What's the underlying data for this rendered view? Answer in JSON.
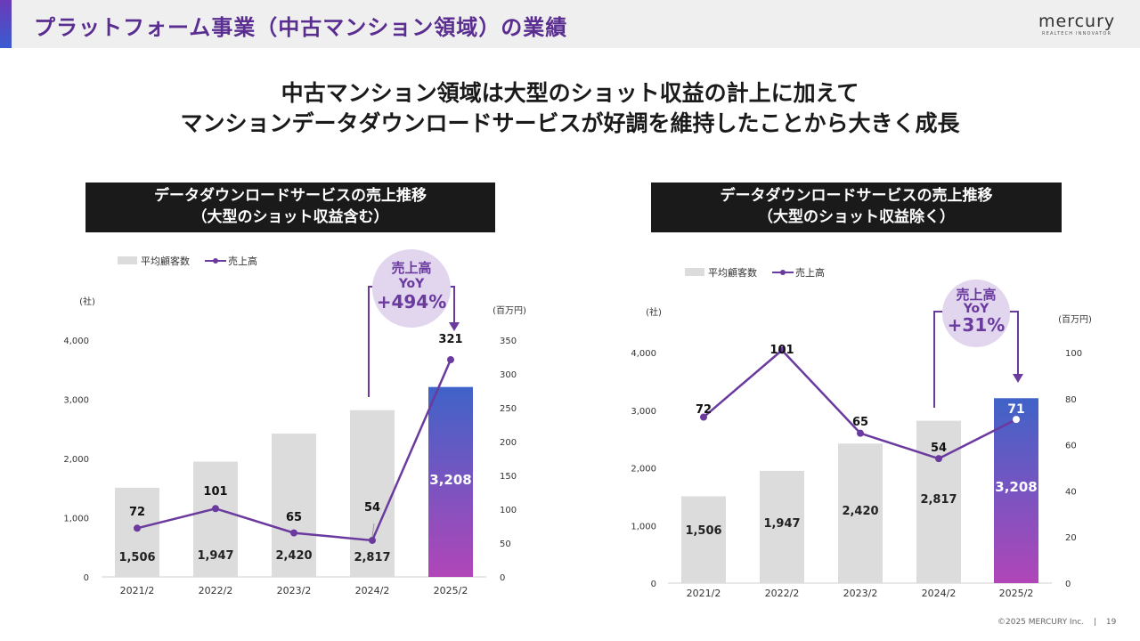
{
  "header": {
    "title": "プラットフォーム事業（中古マンション領域）の業績",
    "logo_text": "mercury",
    "logo_tagline": "REALTECH INNOVATOR"
  },
  "headline": {
    "line1": "中古マンション領域は大型のショット収益の計上に加えて",
    "line2": "マンションデータダウンロードサービスが好調を維持したことから大きく成長"
  },
  "footer": {
    "copyright": "©2025 MERCURY Inc.",
    "separator": "|",
    "page_number": "19"
  },
  "colors": {
    "accent_purple": "#6a3a9e",
    "bar_gray": "#dcdcdc",
    "highlight_bar_top": "#3f63c8",
    "highlight_bar_bottom": "#b146b8",
    "yoy_bubble": "#e1d6ee"
  },
  "chart_data": [
    {
      "type": "bar",
      "panel_title": "データダウンロードサービスの売上推移\n（大型のショット収益含む）",
      "legend": {
        "bar": "平均顧客数",
        "line": "売上高"
      },
      "left_axis_unit": "(社)",
      "right_axis_unit": "(百万円)",
      "categories": [
        "2021/2",
        "2022/2",
        "2023/2",
        "2024/2",
        "2025/2"
      ],
      "series": [
        {
          "name": "平均顧客数",
          "kind": "bar",
          "axis": "left",
          "values": [
            1506,
            1947,
            2420,
            2817,
            3208
          ],
          "labels": [
            "1,506",
            "1,947",
            "2,420",
            "2,817",
            "3,208"
          ]
        },
        {
          "name": "売上高",
          "kind": "line",
          "axis": "right",
          "values": [
            72,
            101,
            65,
            54,
            321
          ],
          "labels": [
            "72",
            "101",
            "65",
            "54",
            "321"
          ]
        }
      ],
      "left_ylim": [
        0,
        4000
      ],
      "left_ticks": [
        "0",
        "1,000",
        "2,000",
        "3,000",
        "4,000"
      ],
      "right_ylim": [
        0,
        350
      ],
      "right_ticks": [
        "0",
        "50",
        "100",
        "150",
        "200",
        "250",
        "300",
        "350"
      ],
      "yoy": {
        "label": "売上高",
        "sub": "YoY",
        "value": "+494%"
      },
      "highlight_index": 4
    },
    {
      "type": "bar",
      "panel_title": "データダウンロードサービスの売上推移\n（大型のショット収益除く）",
      "legend": {
        "bar": "平均顧客数",
        "line": "売上高"
      },
      "left_axis_unit": "(社)",
      "right_axis_unit": "(百万円)",
      "categories": [
        "2021/2",
        "2022/2",
        "2023/2",
        "2024/2",
        "2025/2"
      ],
      "series": [
        {
          "name": "平均顧客数",
          "kind": "bar",
          "axis": "left",
          "values": [
            1506,
            1947,
            2420,
            2817,
            3208
          ],
          "labels": [
            "1,506",
            "1,947",
            "2,420",
            "2,817",
            "3,208"
          ]
        },
        {
          "name": "売上高",
          "kind": "line",
          "axis": "right",
          "values": [
            72,
            101,
            65,
            54,
            71
          ],
          "labels": [
            "72",
            "101",
            "65",
            "54",
            "71"
          ]
        }
      ],
      "left_ylim": [
        0,
        4000
      ],
      "left_ticks": [
        "0",
        "1,000",
        "2,000",
        "3,000",
        "4,000"
      ],
      "right_ylim": [
        0,
        100
      ],
      "right_ticks": [
        "0",
        "20",
        "40",
        "60",
        "80",
        "100"
      ],
      "yoy": {
        "label": "売上高",
        "sub": "YoY",
        "value": "+31%"
      },
      "highlight_index": 4
    }
  ]
}
